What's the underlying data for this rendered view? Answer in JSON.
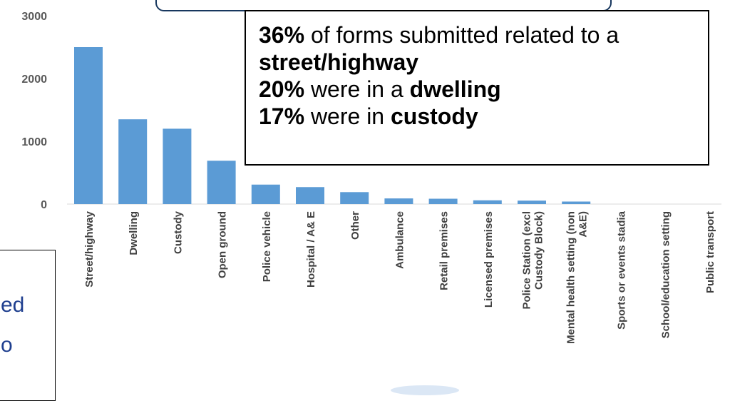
{
  "chart_data": {
    "type": "bar",
    "categories": [
      "Street/highway",
      "Dwelling",
      "Custody",
      "Open ground",
      "Police vehicle",
      "Hospital / A& E",
      "Other",
      "Ambulance",
      "Retail premises",
      "Licensed premises",
      "Police Station (excl Custody Block)",
      "Mental health setting (non A&E)",
      "Sports or events stadia",
      "School/education setting",
      "Public transport"
    ],
    "category_label_lines": [
      [
        "Street/highway"
      ],
      [
        "Dwelling"
      ],
      [
        "Custody"
      ],
      [
        "Open ground"
      ],
      [
        "Police vehicle"
      ],
      [
        "Hospital / A& E"
      ],
      [
        "Other"
      ],
      [
        "Ambulance"
      ],
      [
        "Retail premises"
      ],
      [
        "Licensed premises"
      ],
      [
        "Police Station (excl",
        "Custody Block)"
      ],
      [
        "Mental health setting (non",
        "A&E)"
      ],
      [
        "Sports or events stadia"
      ],
      [
        "School/education setting"
      ],
      [
        "Public transport"
      ]
    ],
    "values": [
      2500,
      1350,
      1200,
      690,
      310,
      270,
      190,
      90,
      85,
      60,
      55,
      40,
      0,
      0,
      0
    ],
    "yticks": [
      0,
      1000,
      2000,
      3000
    ],
    "ylim": [
      0,
      3000
    ],
    "bar_color": "#5b9bd5",
    "grid": false,
    "title": "",
    "xlabel": "",
    "ylabel": ""
  },
  "callout": {
    "lines": [
      [
        {
          "text": "36%",
          "bold": true
        },
        {
          "text": " of forms submitted related to a",
          "bold": false
        }
      ],
      [
        {
          "text": "street/highway",
          "bold": true
        }
      ],
      [
        {
          "text": "20%",
          "bold": true
        },
        {
          "text": " were in a ",
          "bold": false
        },
        {
          "text": "dwelling",
          "bold": true
        }
      ],
      [
        {
          "text": "17%",
          "bold": true
        },
        {
          "text": " were in ",
          "bold": false
        },
        {
          "text": "custody",
          "bold": true
        }
      ]
    ]
  },
  "side_box": {
    "text_fragments": [
      "ed",
      "o"
    ],
    "text_color": "#1f3f8f"
  }
}
